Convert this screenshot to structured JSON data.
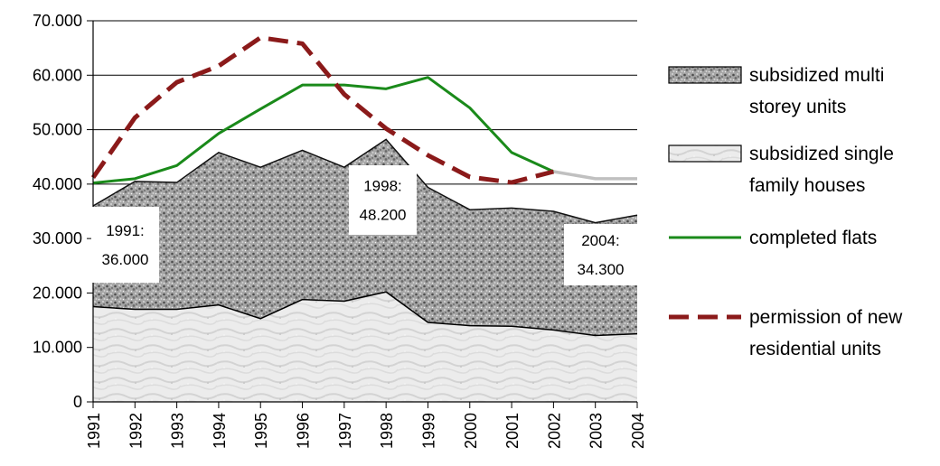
{
  "chart_data": {
    "type": "area",
    "title": "",
    "xlabel": "",
    "ylabel": "",
    "categories": [
      "1991",
      "1992",
      "1993",
      "1994",
      "1995",
      "1996",
      "1997",
      "1998",
      "1999",
      "2000",
      "2001",
      "2002",
      "2003",
      "2004"
    ],
    "ylim": [
      0,
      70000
    ],
    "y_ticks": [
      "0",
      "10.000",
      "20.000",
      "30.000",
      "40.000",
      "50.000",
      "60.000",
      "70.000"
    ],
    "grid": "horizontal",
    "legend_position": "right",
    "series": [
      {
        "name": "subsidized single family houses",
        "kind": "stacked-area",
        "values": [
          17500,
          17000,
          17000,
          17800,
          15300,
          18800,
          18500,
          20200,
          14600,
          14000,
          13900,
          13200,
          12200,
          12500
        ]
      },
      {
        "name": "subsidized multi storey units",
        "kind": "stacked-area",
        "values": [
          18500,
          23500,
          23300,
          28000,
          27800,
          27400,
          24600,
          28000,
          24800,
          21300,
          21700,
          21800,
          20700,
          21800
        ]
      },
      {
        "name": "completed flats",
        "kind": "line",
        "color": "#1a8a1a",
        "values": [
          40200,
          41000,
          43400,
          49300,
          53800,
          58200,
          58200,
          57500,
          59600,
          54000,
          45800,
          42300,
          41000,
          41000
        ],
        "projected_from": "2002",
        "projected_color": "#c0c0c0"
      },
      {
        "name": "permission of new residential units",
        "kind": "dashed-line",
        "color": "#8b1a1a",
        "values": [
          41200,
          52200,
          58700,
          61700,
          66900,
          65800,
          56500,
          50200,
          45300,
          41300,
          40300,
          42300,
          null,
          null
        ]
      }
    ],
    "annotations": [
      {
        "id": "1991",
        "year": "1991",
        "lines": [
          "1991:",
          "36.000"
        ]
      },
      {
        "id": "1998",
        "year": "1998",
        "lines": [
          "1998:",
          "48.200"
        ]
      },
      {
        "id": "2004",
        "year": "2004",
        "lines": [
          "2004:",
          "34.300"
        ]
      }
    ],
    "legend": [
      {
        "series": "subsidized multi storey units",
        "lines": [
          "subsidized multi",
          "storey units"
        ],
        "swatch": "dark-texture"
      },
      {
        "series": "subsidized single family houses",
        "lines": [
          "subsidized single",
          "family houses"
        ],
        "swatch": "light-texture"
      },
      {
        "series": "completed flats",
        "lines": [
          "completed flats"
        ],
        "swatch": "green-line"
      },
      {
        "series": "permission of new residential units",
        "lines": [
          "permission of new",
          "residential units"
        ],
        "swatch": "red-dashed-line"
      }
    ]
  }
}
